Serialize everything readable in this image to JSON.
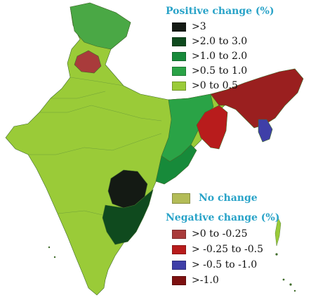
{
  "colors": {
    "background": "#ffffff",
    "title": "#29a3c8",
    "gt3": "#141a14",
    "c2to3": "#0f4a1e",
    "c1to2": "#178a3a",
    "c05to1": "#2aa346",
    "c0to05": "#9acb38",
    "nochange": "#b3bc57",
    "n0to025": "#a93b3b",
    "n025to05": "#b81c1c",
    "n05to1": "#3f3fa8",
    "ngt1": "#7d1111"
  },
  "legend": {
    "positive_title": "Positive change (%)",
    "positive": [
      {
        "label": ">3",
        "color": "#141a14"
      },
      {
        "label": ">2.0 to 3.0",
        "color": "#0f4a1e"
      },
      {
        "label": ">1.0 to 2.0",
        "color": "#178a3a"
      },
      {
        "label": ">0.5 to 1.0",
        "color": "#2aa346"
      },
      {
        "label": ">0 to 0.5",
        "color": "#9acb38"
      }
    ],
    "nochange_label": "No change",
    "negative_title": "Negative change (%)",
    "negative": [
      {
        "label": ">0 to -0.25",
        "color": "#a93b3b"
      },
      {
        "label": "> -0.25 to -0.5",
        "color": "#b81c1c"
      },
      {
        "label": "> -0.5 to -1.0",
        "color": "#3f3fa8"
      },
      {
        "label": ">-1.0",
        "color": "#7d1111"
      }
    ]
  }
}
